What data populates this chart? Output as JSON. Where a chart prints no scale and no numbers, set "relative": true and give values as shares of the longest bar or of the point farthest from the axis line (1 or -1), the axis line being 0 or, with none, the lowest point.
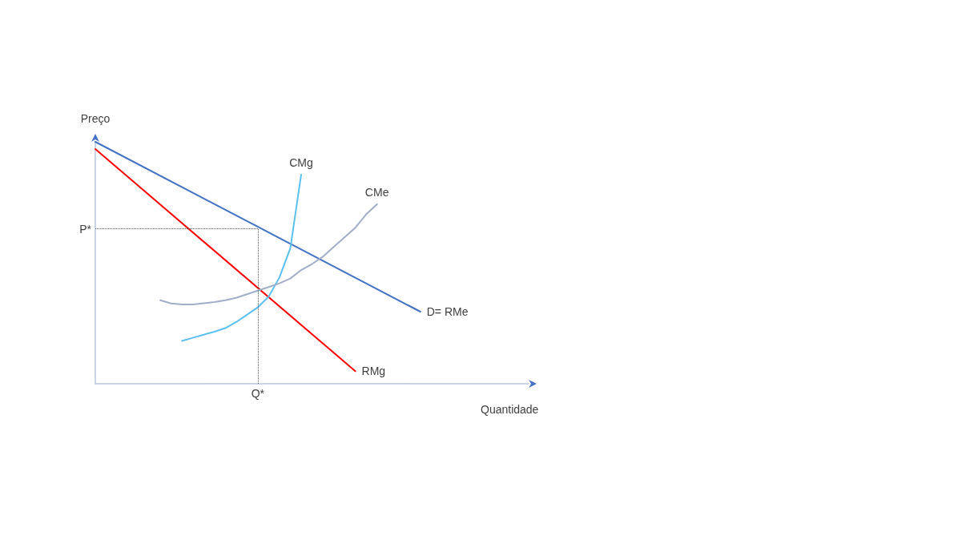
{
  "chart_data": {
    "type": "line",
    "relative": true,
    "xlabel": "Quantidade",
    "ylabel": "Preço",
    "annotations": [
      "Q*"
    ],
    "marker": "none",
    "line_style": "solid",
    "categories": [
      null,
      null,
      null,
      null,
      null,
      null,
      null,
      null,
      null,
      null,
      null,
      null,
      null,
      null,
      null,
      null,
      null,
      null,
      null,
      null,
      null,
      null,
      null,
      null,
      null,
      null,
      null,
      null,
      null,
      null,
      null,
      null,
      null,
      null,
      null,
      null,
      null,
      null,
      null,
      null,
      null
    ],
    "series": [
      {
        "name": "D= RMe",
        "color": "#4472c4",
        "values": [
          1,
          null,
          null,
          null,
          null,
          null,
          null,
          null,
          null,
          null,
          null,
          null,
          null,
          null,
          null,
          null,
          null,
          null,
          null,
          null,
          null,
          null,
          null,
          null,
          null,
          null,
          null,
          null,
          null,
          null,
          0.298,
          null,
          null,
          null,
          null,
          null,
          null,
          null,
          null,
          null,
          null
        ]
      },
      {
        "name": "RMg",
        "color": "#ff0000",
        "values": [
          0.97,
          null,
          null,
          null,
          null,
          null,
          null,
          null,
          null,
          null,
          null,
          null,
          null,
          null,
          null,
          null,
          null,
          null,
          null,
          null,
          null,
          null,
          null,
          null,
          0.052,
          null,
          null,
          null,
          null,
          null,
          null,
          null,
          null,
          null,
          null,
          null,
          null,
          null,
          null,
          null,
          null
        ]
      },
      {
        "name": "CMg",
        "color": "#5bc0f0",
        "values": [
          null,
          null,
          null,
          null,
          null,
          null,
          null,
          null,
          0.177,
          0.19,
          0.203,
          0.215,
          0.23,
          0.255,
          0.285,
          0.316,
          0.36,
          0.44,
          0.56,
          0.864,
          null,
          null,
          null,
          null,
          null,
          null,
          null,
          null,
          null,
          null,
          null,
          null,
          null,
          null,
          null,
          null,
          null,
          null,
          null,
          null,
          null
        ]
      },
      {
        "name": "CMe",
        "color": "#a0aec8",
        "values": [
          null,
          null,
          null,
          null,
          null,
          null,
          0.345,
          0.332,
          0.328,
          0.328,
          0.333,
          0.338,
          0.345,
          0.355,
          0.37,
          0.385,
          0.4,
          0.415,
          0.435,
          0.47,
          0.495,
          0.525,
          0.565,
          0.605,
          0.645,
          0.7,
          0.742,
          null,
          null,
          null,
          null,
          null,
          null,
          null,
          null,
          null,
          null,
          null,
          null,
          null,
          null
        ]
      }
    ],
    "ref_lines": [
      {
        "axis": "y",
        "value": 0.64,
        "label": "P*",
        "color": "#606060",
        "line_style": "dotted"
      }
    ]
  }
}
